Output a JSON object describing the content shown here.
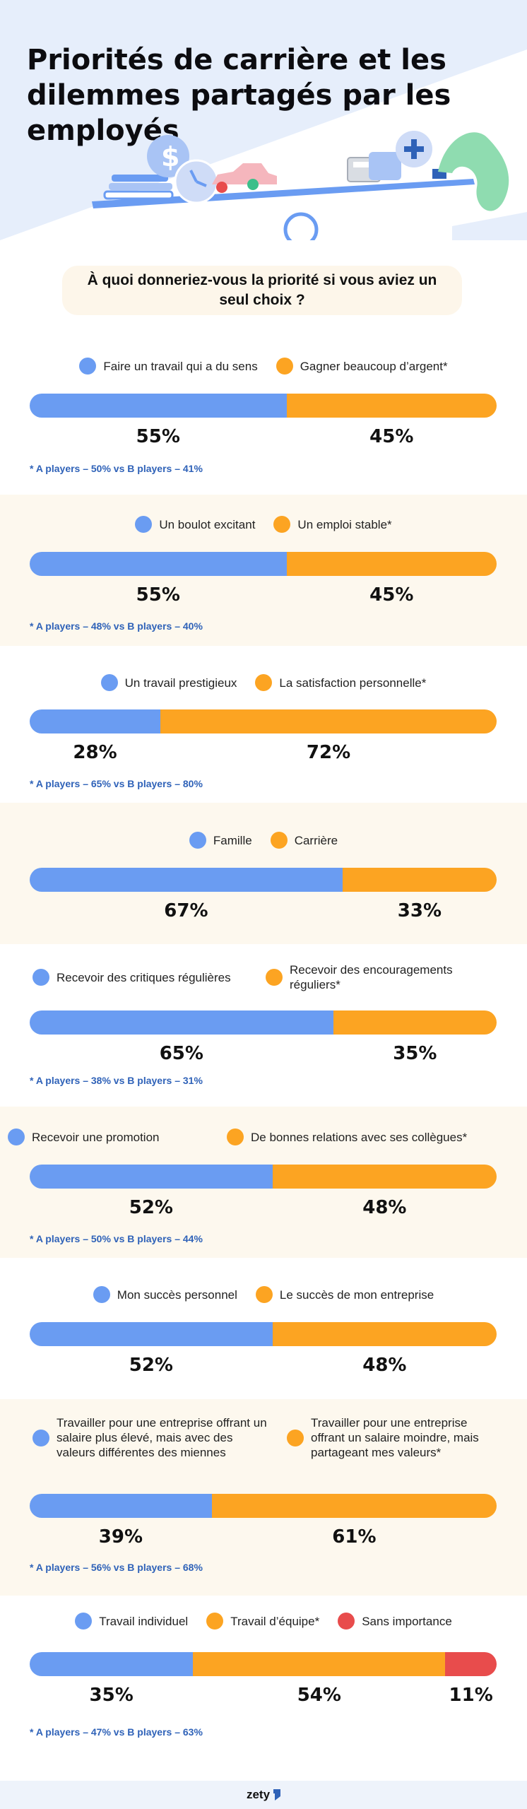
{
  "title": "Priorités de carrière et les dilemmes partagés par les employés",
  "question": "À quoi donneriez-vous la priorité si vous aviez un seul choix ?",
  "colors": {
    "blue": "#6a9cf2",
    "orange": "#fca422",
    "red": "#e84c4c",
    "note": "#2f62b8",
    "alt_bg": "#fdf8ee"
  },
  "brand": "zety",
  "chart_data": [
    {
      "type": "bar",
      "stacked": true,
      "series": [
        {
          "name": "Faire un travail qui a du sens",
          "value": 55,
          "label": "55%"
        },
        {
          "name": "Gagner beaucoup d’argent*",
          "value": 45,
          "label": "45%"
        }
      ],
      "note": "* A players – 50% vs B players – 41%"
    },
    {
      "type": "bar",
      "stacked": true,
      "series": [
        {
          "name": "Un boulot excitant",
          "value": 55,
          "label": "55%"
        },
        {
          "name": "Un emploi stable*",
          "value": 45,
          "label": "45%"
        }
      ],
      "note": "* A players – 48% vs B players – 40%"
    },
    {
      "type": "bar",
      "stacked": true,
      "series": [
        {
          "name": "Un travail prestigieux",
          "value": 28,
          "label": "28%"
        },
        {
          "name": "La satisfaction personnelle*",
          "value": 72,
          "label": "72%"
        }
      ],
      "note": "* A players – 65% vs B players – 80%"
    },
    {
      "type": "bar",
      "stacked": true,
      "series": [
        {
          "name": "Famille",
          "value": 67,
          "label": "67%"
        },
        {
          "name": "Carrière",
          "value": 33,
          "label": "33%"
        }
      ],
      "note": ""
    },
    {
      "type": "bar",
      "stacked": true,
      "series": [
        {
          "name": "Recevoir des critiques régulières",
          "value": 65,
          "label": "65%"
        },
        {
          "name": "Recevoir des encouragements réguliers*",
          "value": 35,
          "label": "35%"
        }
      ],
      "note": "* A players – 38% vs B players – 31%"
    },
    {
      "type": "bar",
      "stacked": true,
      "series": [
        {
          "name": "Recevoir une promotion",
          "value": 52,
          "label": "52%"
        },
        {
          "name": "De bonnes relations avec ses collègues*",
          "value": 48,
          "label": "48%"
        }
      ],
      "note": "* A players – 50% vs B players – 44%"
    },
    {
      "type": "bar",
      "stacked": true,
      "series": [
        {
          "name": "Mon succès personnel",
          "value": 52,
          "label": "52%"
        },
        {
          "name": "Le succès de mon entreprise",
          "value": 48,
          "label": "48%"
        }
      ],
      "note": ""
    },
    {
      "type": "bar",
      "stacked": true,
      "series": [
        {
          "name": "Travailler pour une entreprise offrant un salaire plus élevé, mais avec des valeurs différentes des miennes",
          "value": 39,
          "label": "39%"
        },
        {
          "name": "Travailler pour une entreprise offrant un salaire moindre, mais partageant mes valeurs*",
          "value": 61,
          "label": "61%"
        }
      ],
      "note": "* A players – 56% vs B players – 68%"
    },
    {
      "type": "bar",
      "stacked": true,
      "series": [
        {
          "name": "Travail individuel",
          "value": 35,
          "label": "35%"
        },
        {
          "name": "Travail d’équipe*",
          "value": 54,
          "label": "54%"
        },
        {
          "name": "Sans importance",
          "value": 11,
          "label": "11%"
        }
      ],
      "note": "* A players – 47% vs B players – 63%"
    }
  ]
}
